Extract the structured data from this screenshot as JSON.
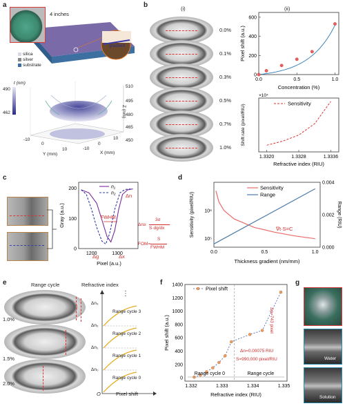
{
  "panels": {
    "a": {
      "label": "a",
      "inset_size": "4 inches",
      "inset_gradient": "gradient",
      "layers": [
        "silica",
        "silver",
        "substrate"
      ],
      "surface": {
        "colorbar_label": "t (nm)",
        "colorbar_max": "490",
        "colorbar_min": "462",
        "z_label": "Z (nm)",
        "z_ticks": [
          "510",
          "495",
          "480",
          "465",
          "450"
        ],
        "y_label": "Y (mm)",
        "x_label": "X (mm)",
        "y_ticks": [
          "-10",
          "0",
          "10"
        ],
        "x_ticks": [
          "-10",
          "0",
          "10"
        ]
      }
    },
    "b": {
      "label": "b",
      "sub_i": "(i)",
      "sub_ii": "(ii)",
      "concentrations": [
        "0.0%",
        "0.1%",
        "0.3%",
        "0.5%",
        "0.7%",
        "1.0%"
      ]
    },
    "c": {
      "label": "c",
      "legend_n1": "n₁",
      "legend_n2": "n₂",
      "ylabel": "Gray (a.u.)",
      "xlabel": "Pixel (a.u.)",
      "delta_n": "Δn",
      "fwhm": "FWHM",
      "delta_g": "Δg",
      "delta_x": "Δx",
      "eq1_lhs": "Δn≥",
      "eq1_num": "3σ",
      "eq1_den": "S·dg/dx",
      "eq2_lhs": "FOM=",
      "eq2_num": "S",
      "eq2_den": "FWHM"
    },
    "d": {
      "label": "d",
      "ylabel_left": "Sensitivity (pixel/RIU)",
      "ylabel_right": "Range (RIU)",
      "xlabel": "Thickness gradient (nm/mm)",
      "annotation": "∇t·S=C"
    },
    "e": {
      "label": "e",
      "title_left": "Range cycle",
      "title_right": "Refractive index",
      "percents": [
        "1.0%",
        "1.5%",
        "2.0%"
      ],
      "dn_labels": [
        "Δn₃",
        "Δn₂",
        "Δn₁",
        "Δn₀"
      ],
      "cycles": [
        "Range cycle 3",
        "Range cycle 2",
        "Range cycle 1",
        "Range cycle 0"
      ],
      "axis_origin": "O",
      "axis_x": "Pixel shift",
      "dots": "⋮"
    },
    "f": {
      "label": "f",
      "ylabel": "Pixel shift (a.u.)",
      "xlabel": "Refractive index (RIU)",
      "range_cycle_0": "Range cycle 0",
      "range_cycle_1": "Range cycle",
      "dn_text": "Δn=0.00075 RIU",
      "s_text": "S=990,000 pixel/RIU",
      "dp_text": "Δp=743 pixel"
    },
    "g": {
      "label": "g",
      "water": "Water",
      "solution": "Solution"
    }
  },
  "chart_data": [
    {
      "type": "scatter",
      "title": "",
      "xlabel": "Concentration (%)",
      "ylabel": "Pixel shift (a.u.)",
      "xlim": [
        0,
        1.05
      ],
      "ylim": [
        0,
        650
      ],
      "xticks": [
        "0.0",
        "0.5",
        "1.0"
      ],
      "yticks": [
        "0",
        "200",
        "400",
        "600"
      ],
      "x": [
        0.0,
        0.1,
        0.3,
        0.5,
        0.7,
        1.0
      ],
      "y": [
        0,
        40,
        95,
        160,
        240,
        530
      ]
    },
    {
      "type": "line",
      "title": "",
      "xlabel": "Refractive index (RIU)",
      "ylabel": "Shift rate (pixel/RIU)",
      "multiplier": "×10⁴",
      "xlim": [
        1.3318,
        1.3338
      ],
      "xticks": [
        "1.3320",
        "1.3328",
        "1.3336"
      ],
      "series": [
        {
          "name": "Sensitivity",
          "x": [
            1.332,
            1.3324,
            1.3328,
            1.3332,
            1.3336
          ],
          "y": [
            1,
            1.6,
            2.5,
            4.2,
            7.5
          ]
        }
      ]
    },
    {
      "type": "line",
      "title": "",
      "xlabel": "Pixel (a.u.)",
      "ylabel": "Gray (a.u.)",
      "xlim": [
        1150,
        1380
      ],
      "ylim": [
        0,
        220
      ],
      "xticks": [
        "1200",
        "1300"
      ],
      "yticks": [
        "0",
        "100",
        "200"
      ],
      "series": [
        {
          "name": "n₁",
          "x": [
            1160,
            1190,
            1220,
            1240,
            1260,
            1275,
            1290,
            1305,
            1320,
            1340,
            1360
          ],
          "y": [
            195,
            185,
            150,
            95,
            40,
            22,
            60,
            130,
            180,
            195,
            198
          ]
        },
        {
          "name": "n₂",
          "x": [
            1160,
            1180,
            1200,
            1220,
            1240,
            1255,
            1270,
            1290,
            1310,
            1330,
            1350
          ],
          "y": [
            195,
            180,
            130,
            70,
            25,
            15,
            50,
            130,
            185,
            196,
            198
          ]
        }
      ]
    },
    {
      "type": "line",
      "title": "",
      "xlabel": "Thickness gradient (nm/mm)",
      "xlim": [
        0,
        1.05
      ],
      "xticks": [
        "0.0",
        "0.5",
        "1.0"
      ],
      "yticks_left": [
        "10⁵",
        "10⁶"
      ],
      "yticks_right": [
        "0.000",
        "0.002",
        "0.004"
      ],
      "series": [
        {
          "name": "Sensitivity",
          "x": [
            0.02,
            0.05,
            0.1,
            0.2,
            0.4,
            0.6,
            0.8,
            1.0
          ],
          "y": [
            5000000,
            2000000,
            1000000,
            500000,
            250000,
            170000,
            125000,
            100000
          ]
        },
        {
          "name": "Range",
          "x": [
            0.0,
            1.0
          ],
          "y": [
            0.0002,
            0.0036
          ]
        }
      ]
    },
    {
      "type": "scatter",
      "title": "",
      "xlabel": "Refractive index (RIU)",
      "ylabel": "Pixel shift (a.u.)",
      "xlim": [
        1.3318,
        1.3351
      ],
      "ylim": [
        -50,
        1400
      ],
      "xticks": [
        "1.332",
        "1.333",
        "1.334",
        "1.335"
      ],
      "yticks": [
        "0",
        "200",
        "400",
        "600",
        "800",
        "1000",
        "1200",
        "1400"
      ],
      "series": [
        {
          "name": "Pixel shift",
          "x": [
            1.3321,
            1.3323,
            1.3325,
            1.3327,
            1.3329,
            1.3331,
            1.3333,
            1.3339,
            1.3343,
            1.3349
          ],
          "y": [
            10,
            40,
            90,
            150,
            230,
            330,
            540,
            650,
            710,
            1285
          ]
        }
      ]
    }
  ]
}
